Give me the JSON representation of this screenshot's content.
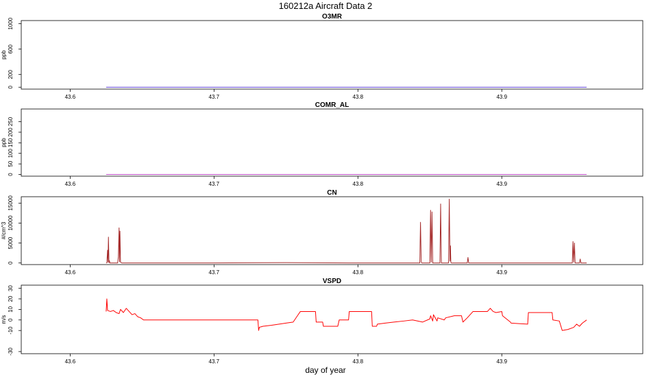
{
  "figure": {
    "title": "160212a   Aircraft Data 2",
    "xlabel": "day of year"
  },
  "chart_data": [
    {
      "type": "line",
      "title": "O3MR",
      "ylabel": "ppb",
      "xlim": [
        43.566,
        43.998
      ],
      "ylim": [
        -30,
        1050
      ],
      "yticks": [
        0,
        200,
        600,
        1000
      ],
      "xticks": [
        43.6,
        43.7,
        43.8,
        43.9
      ],
      "color": "#5b3fd6",
      "grid": false,
      "series": [
        {
          "x": [
            43.625,
            43.959
          ],
          "y": [
            0,
            0
          ]
        }
      ]
    },
    {
      "type": "line",
      "title": "COMR_AL",
      "ylabel": "ppb",
      "xlim": [
        43.566,
        43.998
      ],
      "ylim": [
        -8,
        310
      ],
      "yticks": [
        0,
        50,
        100,
        150,
        200,
        250
      ],
      "xticks": [
        43.6,
        43.7,
        43.8,
        43.9
      ],
      "color": "#c04fc9",
      "grid": false,
      "series": [
        {
          "x": [
            43.625,
            43.959
          ],
          "y": [
            0,
            0
          ]
        }
      ]
    },
    {
      "type": "line",
      "title": "CN",
      "ylabel": "#/cm^3",
      "xlim": [
        43.566,
        43.998
      ],
      "ylim": [
        -400,
        16600
      ],
      "yticks": [
        0,
        5000,
        10000,
        15000
      ],
      "xticks": [
        43.6,
        43.7,
        43.8,
        43.9
      ],
      "color": "#a52a2a",
      "grid": false,
      "series": [
        {
          "x": [
            43.625,
            43.6255,
            43.626,
            43.6263,
            43.6266,
            43.627,
            43.6273,
            43.6276,
            43.628,
            43.633,
            43.6335,
            43.634,
            43.6343,
            43.6346,
            43.635,
            43.6355,
            43.636,
            43.7,
            43.75,
            43.8,
            43.843,
            43.8435,
            43.844,
            43.8445,
            43.85,
            43.8505,
            43.851,
            43.8515,
            43.852,
            43.857,
            43.8575,
            43.858,
            43.863,
            43.8635,
            43.864,
            43.8643,
            43.8646,
            43.865,
            43.876,
            43.8765,
            43.877,
            43.9,
            43.949,
            43.9495,
            43.95,
            43.9505,
            43.951,
            43.954,
            43.9545,
            43.955,
            43.959
          ],
          "y": [
            0,
            50,
            3200,
            200,
            6500,
            100,
            600,
            0,
            0,
            0,
            1500,
            8800,
            300,
            8000,
            200,
            100,
            0,
            0,
            100,
            0,
            0,
            10200,
            200,
            0,
            0,
            13200,
            200,
            12800,
            0,
            0,
            14800,
            0,
            0,
            16000,
            500,
            4300,
            200,
            0,
            0,
            1400,
            0,
            0,
            0,
            5400,
            200,
            5000,
            0,
            0,
            1000,
            0,
            0
          ]
        }
      ]
    },
    {
      "type": "line",
      "title": "VSPD",
      "ylabel": "m/s",
      "xlim": [
        43.566,
        43.998
      ],
      "ylim": [
        -32,
        33
      ],
      "yticks": [
        -30,
        -10,
        0,
        10,
        20,
        30
      ],
      "xticks": [
        43.6,
        43.7,
        43.8,
        43.9
      ],
      "color": "#ff0000",
      "grid": false,
      "series": [
        {
          "x": [
            43.625,
            43.6255,
            43.626,
            43.628,
            43.63,
            43.632,
            43.634,
            43.635,
            43.637,
            43.639,
            43.641,
            43.643,
            43.645,
            43.647,
            43.649,
            43.651,
            43.655,
            43.67,
            43.69,
            43.71,
            43.7305,
            43.731,
            43.7315,
            43.734,
            43.74,
            43.75,
            43.755,
            43.7575,
            43.76,
            43.761,
            43.7705,
            43.771,
            43.7755,
            43.776,
            43.786,
            43.787,
            43.7935,
            43.794,
            43.8095,
            43.81,
            43.813,
            43.8135,
            43.819,
            43.825,
            43.832,
            43.838,
            43.845,
            43.85,
            43.8505,
            43.852,
            43.8525,
            43.855,
            43.8555,
            43.86,
            43.861,
            43.867,
            43.872,
            43.873,
            43.876,
            43.88,
            43.885,
            43.89,
            43.892,
            43.894,
            43.896,
            43.9,
            43.9005,
            43.906,
            43.9065,
            43.918,
            43.9185,
            43.935,
            43.9355,
            43.94,
            43.942,
            43.946,
            43.95,
            43.952,
            43.954,
            43.956,
            43.958,
            43.959
          ],
          "y": [
            8,
            20,
            9,
            8,
            9,
            7,
            6,
            10,
            7,
            11,
            8,
            5,
            6,
            3,
            2,
            0,
            0,
            0,
            0,
            0,
            0,
            -10,
            -7,
            -6,
            -5,
            -3,
            -2,
            3,
            8,
            8,
            8,
            -2,
            -2,
            -6,
            -6,
            0,
            0,
            8,
            8,
            -6,
            -6,
            -4,
            -3,
            -2,
            -1,
            0,
            -2,
            1,
            4,
            -1,
            5,
            -1,
            2,
            0,
            2,
            4,
            4,
            -2,
            2,
            8,
            8,
            8,
            11,
            8,
            7,
            8,
            4,
            -2,
            -3,
            -4,
            7,
            7,
            0,
            -1,
            -10,
            -9,
            -7,
            -4,
            -6,
            -3,
            -1,
            0
          ]
        }
      ]
    }
  ]
}
